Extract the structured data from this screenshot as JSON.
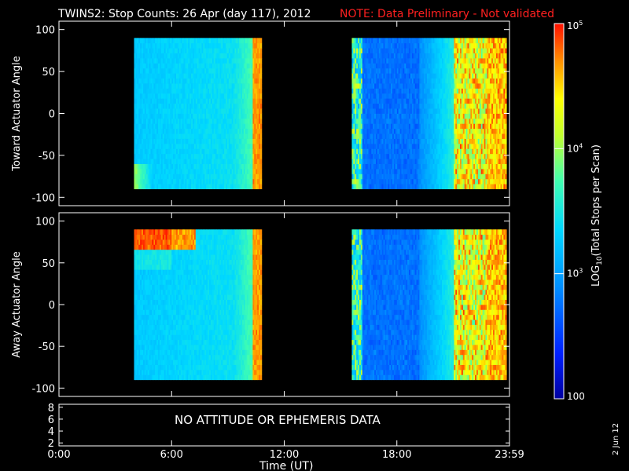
{
  "title": "TWINS2: Stop Counts: 26 Apr (day 117), 2012",
  "note": "NOTE: Data Preliminary - Not validated",
  "footer_date": "2 Jun 12",
  "no_data_message": "NO ATTITUDE OR EPHEMERIS DATA",
  "colors": {
    "note": "#ff2020",
    "axes": "#ffffff",
    "background": "#000000"
  },
  "chart_data": [
    {
      "type": "heatmap",
      "ylabel": "Toward Actuator Angle",
      "ylim": [
        -110,
        110
      ],
      "yticks": [
        -100,
        -50,
        0,
        50,
        100
      ],
      "xlim": [
        0,
        24
      ],
      "data_blocks": [
        {
          "x_range": [
            4.0,
            10.8
          ],
          "y_range": [
            -90,
            90
          ],
          "level": "low (~10^3)",
          "edge_level": "high (~10^4.5) near 10.5 UT"
        },
        {
          "x_range": [
            15.6,
            23.8
          ],
          "y_range": [
            -90,
            90
          ],
          "level": "lower (~10^2.5) 16-19 UT",
          "edge_level": "high (~10^4.5) 21-24 UT"
        }
      ]
    },
    {
      "type": "heatmap",
      "ylabel": "Away Actuator Angle",
      "ylim": [
        -110,
        110
      ],
      "yticks": [
        -100,
        -50,
        0,
        50,
        100
      ],
      "xlim": [
        0,
        24
      ],
      "data_blocks": [
        {
          "x_range": [
            4.0,
            10.8
          ],
          "y_range": [
            -90,
            90
          ],
          "level": "low (~10^3)",
          "edge_level": "high band near +80 deg 4-7 UT"
        },
        {
          "x_range": [
            15.6,
            23.8
          ],
          "y_range": [
            -90,
            90
          ],
          "level": "lower (~10^2.5) 16-19 UT",
          "edge_level": "high (~10^4.5) 21-24 UT"
        }
      ]
    },
    {
      "type": "line",
      "ylim": [
        1.5,
        8.5
      ],
      "yticks": [
        2,
        4,
        6,
        8
      ],
      "xlim": [
        0,
        24
      ],
      "xticks": [
        "0:00",
        "6:00",
        "12:00",
        "18:00",
        "23:59"
      ],
      "xtick_values": [
        0,
        6,
        12,
        18,
        24
      ],
      "xlabel": "Time (UT)",
      "series": []
    }
  ],
  "colorbar": {
    "label": "LOG10(Total Stops per Scan)",
    "label_main": "LOG",
    "label_sub": "10",
    "label_rest": "(Total Stops per Scan)",
    "scale": "log",
    "range": [
      100,
      100000
    ],
    "ticks": [
      {
        "value": 100,
        "label": "100"
      },
      {
        "value": 1000,
        "label": "10",
        "exp": "3"
      },
      {
        "value": 10000,
        "label": "10",
        "exp": "4"
      },
      {
        "value": 100000,
        "label": "10",
        "exp": "5"
      }
    ]
  }
}
